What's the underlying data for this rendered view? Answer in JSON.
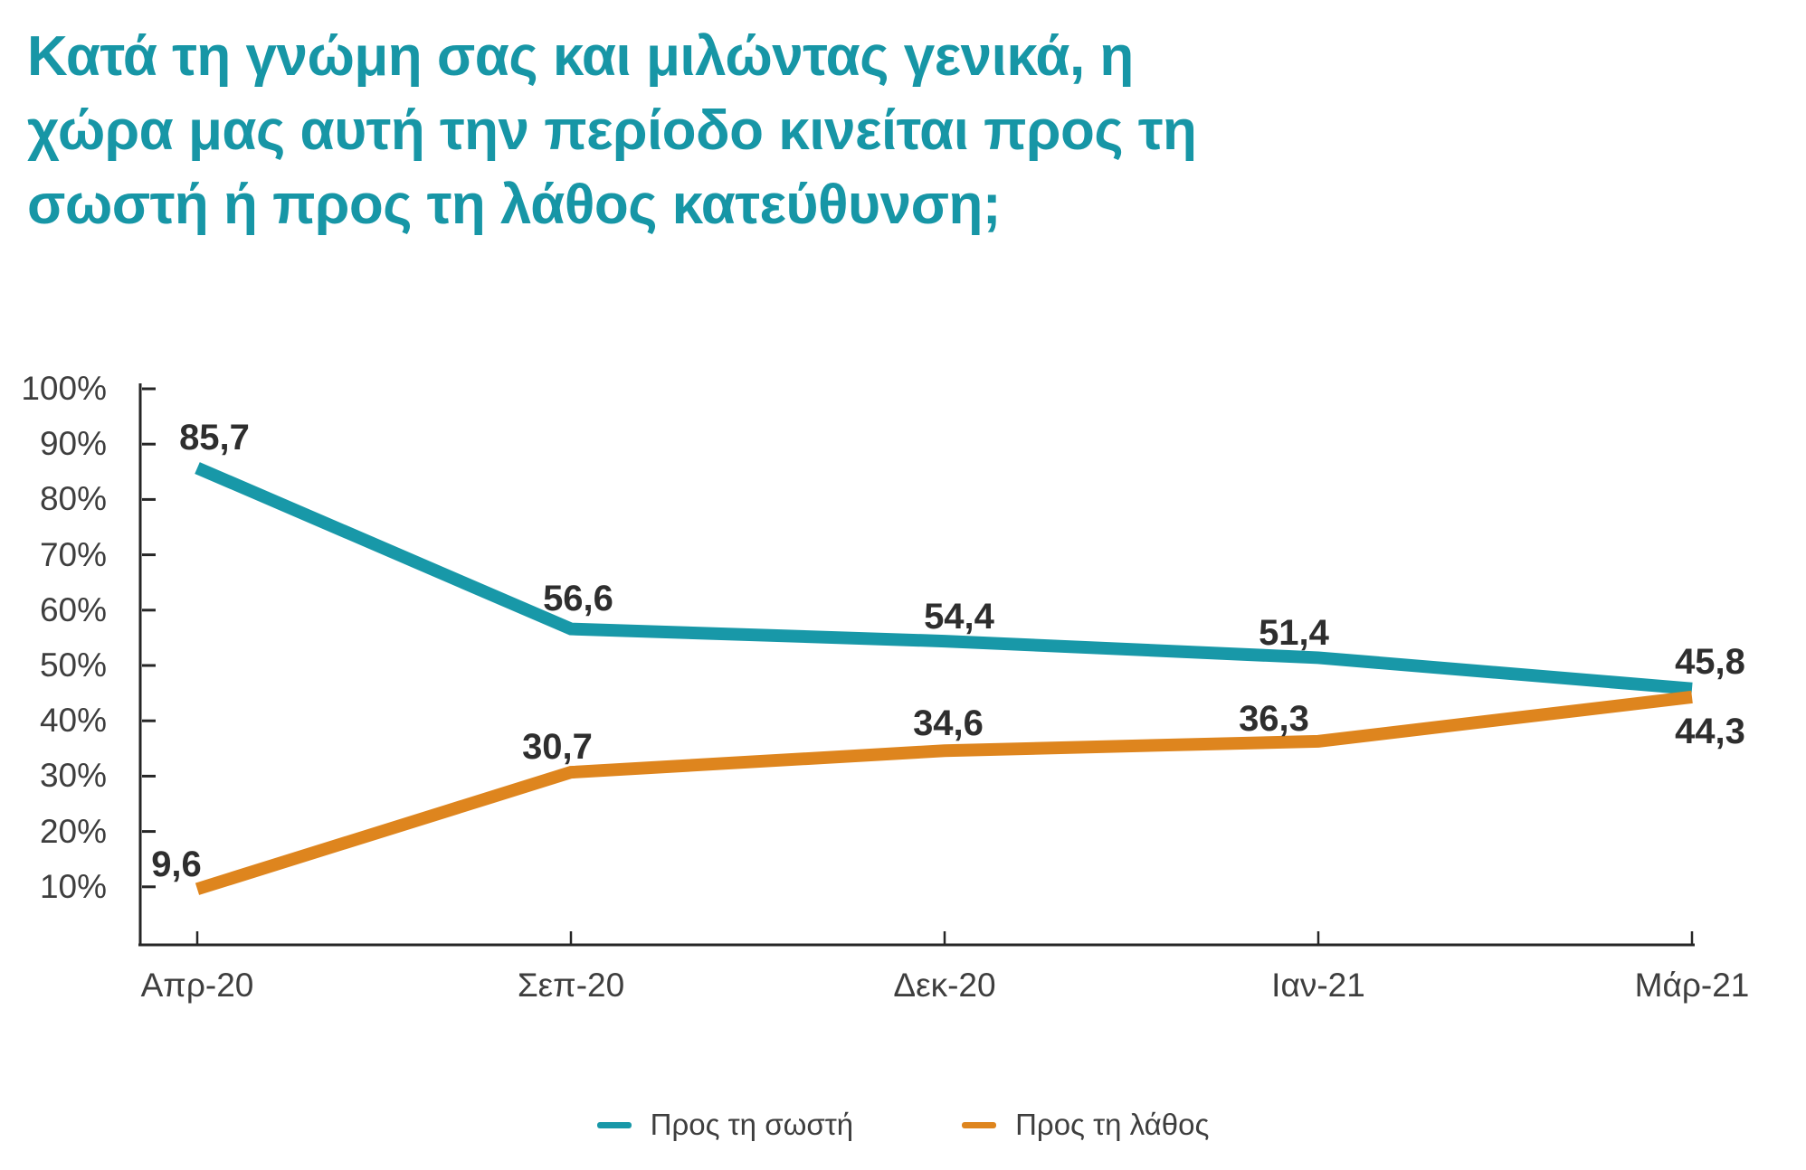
{
  "title": {
    "lines": [
      "Κατά τη γνώμη σας και μιλώντας γενικά, η",
      "χώρα μας αυτή την περίοδο κινείται προς τη",
      "σωστή ή προς τη λάθος κατεύθυνση;"
    ],
    "color": "#1796A6"
  },
  "chart_data": {
    "type": "line",
    "categories": [
      "Απρ-20",
      "Σεπ-20",
      "Δεκ-20",
      "Ιαν-21",
      "Μάρ-21"
    ],
    "series": [
      {
        "name": "Προς τη σωστή",
        "color": "#1898A8",
        "values": [
          85.7,
          56.6,
          54.4,
          51.4,
          45.8
        ]
      },
      {
        "name": "Προς τη λάθος",
        "color": "#DE851E",
        "values": [
          9.6,
          30.7,
          34.6,
          36.3,
          44.3
        ]
      }
    ],
    "data_label_texts": [
      [
        "85,7",
        "56,6",
        "54,4",
        "51,4",
        "45,8"
      ],
      [
        "9,6",
        "30,7",
        "34,6",
        "36,3",
        "44,3"
      ]
    ],
    "y_axis": {
      "min": 0,
      "max": 100,
      "tick_step": 10,
      "tick_values": [
        100,
        90,
        80,
        70,
        60,
        50,
        40,
        30,
        20,
        10
      ],
      "tick_labels": [
        "100%",
        "90%",
        "80%",
        "70%",
        "60%",
        "50%",
        "40%",
        "30%",
        "20%",
        "10%"
      ]
    },
    "decimal_separator": ",",
    "grid": false,
    "legend_position": "bottom",
    "axis_color": "#262626"
  }
}
